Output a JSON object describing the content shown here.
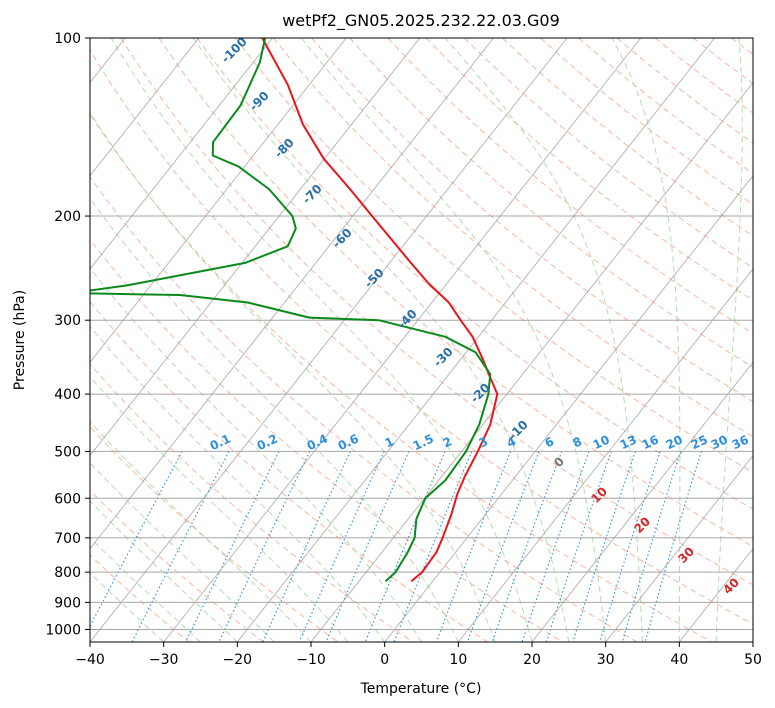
{
  "chart_data": {
    "type": "skew-t",
    "title": "wetPf2_GN05.2025.232.22.03.G09",
    "xlabel": "Temperature (°C)",
    "ylabel": "Pressure (hPa)",
    "xlim": [
      -40,
      50
    ],
    "ylim": [
      1050,
      100
    ],
    "y_scale": "log",
    "x_ticks": [
      -40,
      -30,
      -20,
      -10,
      0,
      10,
      20,
      30,
      40,
      50
    ],
    "x_tick_labels": [
      "−40",
      "−30",
      "−20",
      "−10",
      "0",
      "10",
      "20",
      "30",
      "40",
      "50"
    ],
    "y_ticks": [
      100,
      200,
      300,
      400,
      500,
      600,
      700,
      800,
      900,
      1000
    ],
    "y_tick_labels": [
      "100",
      "200",
      "300",
      "400",
      "500",
      "600",
      "700",
      "800",
      "900",
      "1000"
    ],
    "grid": true,
    "colors": {
      "temperature": "#e8161b",
      "dewpoint": "#0a8a1a",
      "dry_adiabat": "#f7a58a",
      "moist_adiabat": "#a9d5a6",
      "isotherm": "#9e9e9e",
      "mixing_ratio": "#2a8fe0"
    },
    "series": [
      {
        "points": [
          {
            "p": 829,
            "t": -2.9
          },
          {
            "p": 800,
            "t": -2.4
          },
          {
            "p": 740,
            "t": -2.6
          },
          {
            "p": 700,
            "t": -3.3
          },
          {
            "p": 640,
            "t": -4.6
          },
          {
            "p": 590,
            "t": -6.0
          },
          {
            "p": 550,
            "t": -6.9
          },
          {
            "p": 500,
            "t": -7.8
          },
          {
            "p": 450,
            "t": -9.0
          },
          {
            "p": 400,
            "t": -11.3
          },
          {
            "p": 370,
            "t": -14.6
          },
          {
            "p": 350,
            "t": -16.9
          },
          {
            "p": 320,
            "t": -20.8
          },
          {
            "p": 300,
            "t": -24.2
          },
          {
            "p": 280,
            "t": -27.7
          },
          {
            "p": 260,
            "t": -32.5
          },
          {
            "p": 240,
            "t": -37.1
          },
          {
            "p": 200,
            "t": -47.4
          },
          {
            "p": 180,
            "t": -53.3
          },
          {
            "p": 160,
            "t": -60.1
          },
          {
            "p": 140,
            "t": -66.6
          },
          {
            "p": 120,
            "t": -72.9
          },
          {
            "p": 100,
            "t": -81.4
          }
        ]
      },
      {
        "points": [
          {
            "p": 829,
            "t": -6.4
          },
          {
            "p": 800,
            "t": -6.0
          },
          {
            "p": 740,
            "t": -6.5
          },
          {
            "p": 700,
            "t": -7.1
          },
          {
            "p": 650,
            "t": -8.9
          },
          {
            "p": 600,
            "t": -9.9
          },
          {
            "p": 560,
            "t": -9.1
          },
          {
            "p": 500,
            "t": -9.4
          },
          {
            "p": 450,
            "t": -10.5
          },
          {
            "p": 400,
            "t": -12.5
          },
          {
            "p": 370,
            "t": -14.4
          },
          {
            "p": 340,
            "t": -18.7
          },
          {
            "p": 320,
            "t": -24.5
          },
          {
            "p": 300,
            "t": -35.3
          },
          {
            "p": 297,
            "t": -45.0
          },
          {
            "p": 280,
            "t": -55.0
          },
          {
            "p": 272,
            "t": -65.0
          },
          {
            "p": 270,
            "t": -80.0
          },
          {
            "p": 262,
            "t": -73.2
          },
          {
            "p": 240,
            "t": -59.6
          },
          {
            "p": 225,
            "t": -55.6
          },
          {
            "p": 210,
            "t": -56.4
          },
          {
            "p": 200,
            "t": -58.2
          },
          {
            "p": 180,
            "t": -64.3
          },
          {
            "p": 165,
            "t": -70.8
          },
          {
            "p": 158,
            "t": -75.5
          },
          {
            "p": 150,
            "t": -76.9
          },
          {
            "p": 130,
            "t": -77.1
          },
          {
            "p": 110,
            "t": -79.1
          },
          {
            "p": 100,
            "t": -81.0
          }
        ]
      }
    ],
    "dry_adiabat_labels": [
      "-100",
      "-90",
      "-80",
      "-70",
      "-60",
      "-50",
      "-40",
      "-30",
      "-20",
      "-10",
      "0",
      "10",
      "20",
      "30",
      "40"
    ],
    "mixing_ratio_labels": [
      "0.1",
      "0.2",
      "0.4",
      "0.6",
      "1",
      "1.5",
      "2",
      "3",
      "4",
      "6",
      "8",
      "10",
      "13",
      "16",
      "20",
      "25",
      "30",
      "36"
    ],
    "moist_adiabat_labels": [
      "10",
      "20",
      "30",
      "40"
    ]
  }
}
